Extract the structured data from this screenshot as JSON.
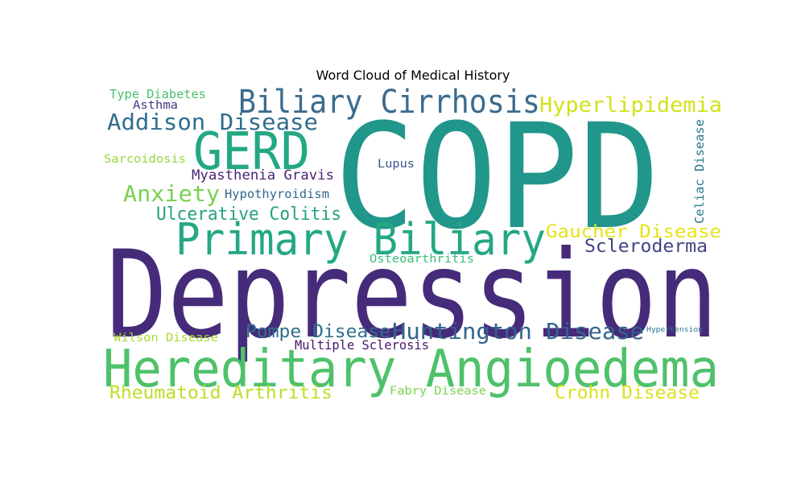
{
  "chart_data": {
    "type": "wordcloud",
    "title": "Word Cloud of Medical History",
    "words": [
      {
        "text": "COPD",
        "color": "#21968b"
      },
      {
        "text": "Depression",
        "color": "#462b7a"
      },
      {
        "text": "Hereditary Angioedema",
        "color": "#4fc16b"
      },
      {
        "text": "Primary Biliary",
        "color": "#23a884"
      },
      {
        "text": "GERD",
        "color": "#23a884"
      },
      {
        "text": "Biliary Cirrhosis",
        "color": "#3a6b8e"
      },
      {
        "text": "Huntington Disease",
        "color": "#33638d"
      },
      {
        "text": "Addison Disease",
        "color": "#2f6e8e"
      },
      {
        "text": "Hyperlipidemia",
        "color": "#d2e21b"
      },
      {
        "text": "Anxiety",
        "color": "#7ad151"
      },
      {
        "text": "Gaucher Disease",
        "color": "#e5e419"
      },
      {
        "text": "Scleroderma",
        "color": "#414487"
      },
      {
        "text": "Pompe Disease",
        "color": "#2d708e"
      },
      {
        "text": "Ulcerative Colitis",
        "color": "#27a081"
      },
      {
        "text": "Rheumatoid Arthritis",
        "color": "#bddf26"
      },
      {
        "text": "Crohn Disease",
        "color": "#dbe21f"
      },
      {
        "text": "Myasthenia Gravis",
        "color": "#482475"
      },
      {
        "text": "Multiple Sclerosis",
        "color": "#481769"
      },
      {
        "text": "Hypothyroidism",
        "color": "#31688e"
      },
      {
        "text": "Celiac Disease",
        "color": "#2a788e"
      },
      {
        "text": "Type Diabetes",
        "color": "#4ac16d"
      },
      {
        "text": "Asthma",
        "color": "#443983"
      },
      {
        "text": "Sarcoidosis",
        "color": "#95d840"
      },
      {
        "text": "Lupus",
        "color": "#3b528b"
      },
      {
        "text": "Osteoarthritis",
        "color": "#3dbc74"
      },
      {
        "text": "Wilson Disease",
        "color": "#a8db34"
      },
      {
        "text": "Fabry Disease",
        "color": "#7fd34e"
      },
      {
        "text": "Hypertension",
        "color": "#2c728e"
      }
    ]
  }
}
